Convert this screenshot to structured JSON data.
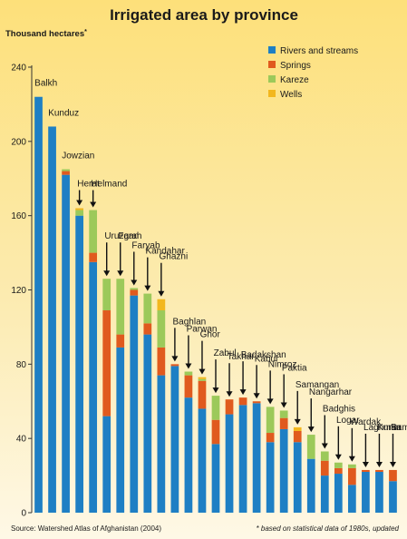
{
  "chart_data": {
    "type": "bar",
    "stacked": true,
    "title": "Irrigated area by province",
    "ylabel": "Thousand hectares",
    "ylabel_marker": "*",
    "ylim": [
      0,
      240
    ],
    "yticks": [
      0,
      40,
      80,
      120,
      160,
      200,
      240
    ],
    "grid": false,
    "legend_position": "top-right",
    "categories": [
      "Balkh",
      "Kunduz",
      "Jowzian",
      "Herat",
      "Helmand",
      "Uruzgan",
      "Farah",
      "Faryab",
      "Kandahar",
      "Ghazni",
      "Baghlan",
      "Parwan",
      "Ghor",
      "Zabul",
      "Takhar",
      "Badakshan",
      "Kabul",
      "Nimroz",
      "Paktia",
      "Samangan",
      "Nangarhar",
      "Badghis",
      "Logar",
      "Wardak",
      "Laghman",
      "Kunar",
      "Bamyan"
    ],
    "series": [
      {
        "name": "Rivers and streams",
        "color": "#1e7fc4",
        "values": [
          224,
          208,
          182,
          160,
          135,
          52,
          89,
          117,
          96,
          74,
          79,
          62,
          56,
          37,
          53,
          58,
          59,
          38,
          45,
          38,
          29,
          20,
          21,
          15,
          22,
          22,
          17
        ]
      },
      {
        "name": "Springs",
        "color": "#e05a1e",
        "values": [
          0,
          0,
          2,
          0,
          5,
          57,
          7,
          3,
          6,
          15,
          1,
          12,
          15,
          13,
          8,
          4,
          1,
          5,
          6,
          6,
          0,
          8,
          3,
          9,
          1,
          1,
          6
        ]
      },
      {
        "name": "Kareze",
        "color": "#9cc95a",
        "values": [
          0,
          0,
          1,
          3,
          23,
          17,
          30,
          1,
          16,
          20,
          0,
          2,
          1,
          13,
          0,
          0,
          0,
          14,
          4,
          0,
          13,
          5,
          3,
          2,
          0,
          0,
          0
        ]
      },
      {
        "name": "Wells",
        "color": "#f2b71e",
        "values": [
          0,
          0,
          0,
          1,
          0,
          0,
          0,
          0,
          0,
          6,
          0,
          0,
          1,
          0,
          0,
          0,
          0,
          0,
          0,
          2,
          0,
          0,
          0,
          0,
          0,
          0,
          0
        ]
      }
    ]
  },
  "footer": {
    "source": "Source: Watershed Atlas of Afghanistan (2004)",
    "note": "* based on statistical data of 1980s, updated"
  }
}
